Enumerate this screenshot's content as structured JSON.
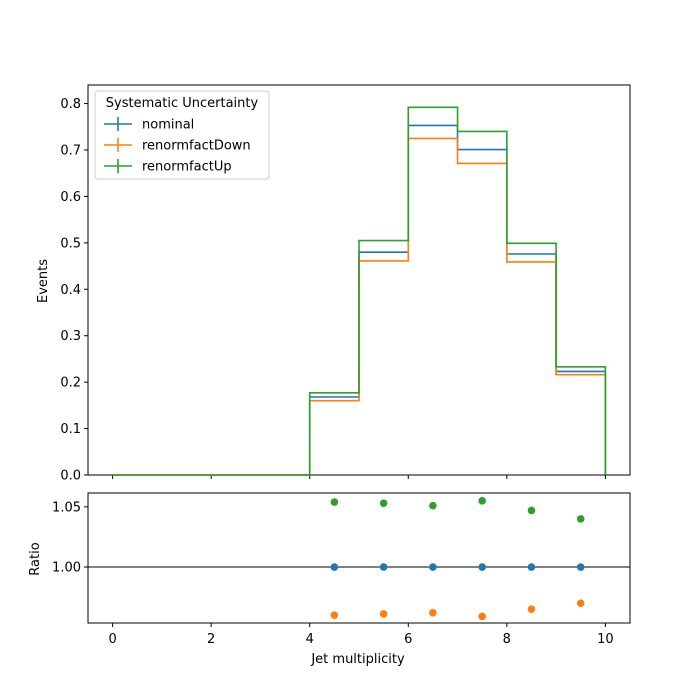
{
  "chart_data": [
    {
      "type": "step",
      "panel": "main",
      "ylabel": "Events",
      "xlim": [
        -0.5,
        10.5
      ],
      "ylim": [
        0,
        0.84
      ],
      "yticks": [
        {
          "value": 0.0,
          "label": "0.0"
        },
        {
          "value": 0.1,
          "label": "0.1"
        },
        {
          "value": 0.2,
          "label": "0.2"
        },
        {
          "value": 0.3,
          "label": "0.3"
        },
        {
          "value": 0.4,
          "label": "0.4"
        },
        {
          "value": 0.5,
          "label": "0.5"
        },
        {
          "value": 0.6,
          "label": "0.6"
        },
        {
          "value": 0.7,
          "label": "0.7"
        },
        {
          "value": 0.8,
          "label": "0.8"
        }
      ],
      "bin_edges": [
        0,
        1,
        2,
        3,
        4,
        5,
        6,
        7,
        8,
        9,
        10
      ],
      "legend": {
        "title": "Systematic Uncertainty",
        "position": "top-left"
      },
      "series": [
        {
          "name": "nominal",
          "color": "#1f77b4",
          "values": [
            0,
            0,
            0,
            0,
            0.168,
            0.48,
            0.753,
            0.701,
            0.476,
            0.223
          ]
        },
        {
          "name": "renormfactDown",
          "color": "#ff7f0e",
          "values": [
            0,
            0,
            0,
            0,
            0.16,
            0.461,
            0.725,
            0.671,
            0.459,
            0.216
          ]
        },
        {
          "name": "renormfactUp",
          "color": "#2ca02c",
          "values": [
            0,
            0,
            0,
            0,
            0.177,
            0.505,
            0.792,
            0.74,
            0.499,
            0.233
          ]
        }
      ]
    },
    {
      "type": "scatter",
      "panel": "ratio",
      "xlabel": "Jet multiplicity",
      "ylabel": "Ratio",
      "xlim": [
        -0.5,
        10.5
      ],
      "ylim": [
        0.9535,
        1.0615
      ],
      "xticks": [
        {
          "value": 0,
          "label": "0"
        },
        {
          "value": 2,
          "label": "2"
        },
        {
          "value": 4,
          "label": "4"
        },
        {
          "value": 6,
          "label": "6"
        },
        {
          "value": 8,
          "label": "8"
        },
        {
          "value": 10,
          "label": "10"
        }
      ],
      "yticks": [
        {
          "value": 1.0,
          "label": "1.00"
        },
        {
          "value": 1.05,
          "label": "1.05"
        }
      ],
      "reference_line": 1.0,
      "x": [
        4.5,
        5.5,
        6.5,
        7.5,
        8.5,
        9.5
      ],
      "series": [
        {
          "name": "nominal",
          "color": "#1f77b4",
          "values": [
            1.0,
            1.0,
            1.0,
            1.0,
            1.0,
            1.0
          ]
        },
        {
          "name": "renormfactDown",
          "color": "#ff7f0e",
          "values": [
            0.96,
            0.961,
            0.962,
            0.959,
            0.965,
            0.97
          ]
        },
        {
          "name": "renormfactUp",
          "color": "#2ca02c",
          "values": [
            1.054,
            1.053,
            1.051,
            1.055,
            1.047,
            1.04
          ]
        }
      ]
    }
  ]
}
